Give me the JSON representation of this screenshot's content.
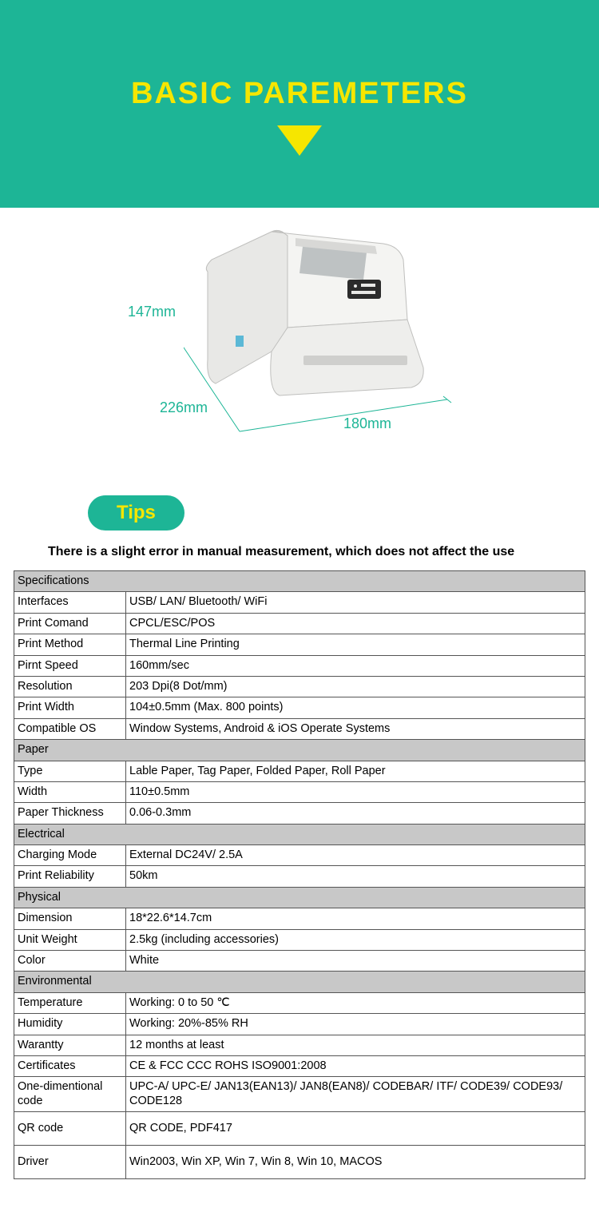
{
  "header": {
    "title": "BASIC PAREMETERS",
    "bg_color": "#1db596",
    "title_color": "#f6e600",
    "triangle_color": "#f6e600"
  },
  "diagram": {
    "dim_height": "147mm",
    "dim_depth": "226mm",
    "dim_width": "180mm",
    "line_color": "#1db596",
    "label_color": "#1db596"
  },
  "tips": {
    "label": "Tips",
    "bg_color": "#1db596",
    "text_color": "#f6e600"
  },
  "note": "There is a slight error in manual measurement, which does not affect the use",
  "spec_sections": [
    {
      "header": "Specifications",
      "rows": [
        [
          "Interfaces",
          "USB/ LAN/ Bluetooth/ WiFi"
        ],
        [
          "Print Comand",
          "CPCL/ESC/POS"
        ],
        [
          "Print Method",
          "Thermal Line Printing"
        ],
        [
          "Pirnt Speed",
          "160mm/sec"
        ],
        [
          "Resolution",
          "203 Dpi(8 Dot/mm)"
        ],
        [
          "Print Width",
          "104±0.5mm (Max. 800 points)"
        ],
        [
          "Compatible OS",
          "Window Systems, Android & iOS Operate Systems"
        ]
      ]
    },
    {
      "header": "Paper",
      "rows": [
        [
          "Type",
          "Lable Paper, Tag Paper,   Folded Paper, Roll Paper"
        ],
        [
          "Width",
          "110±0.5mm"
        ],
        [
          "Paper Thickness",
          "0.06-0.3mm"
        ]
      ]
    },
    {
      "header": "Electrical",
      "rows": [
        [
          "Charging Mode",
          "External DC24V/ 2.5A"
        ],
        [
          "Print Reliability",
          "50km"
        ]
      ]
    },
    {
      "header": "Physical",
      "rows": [
        [
          "Dimension",
          "18*22.6*14.7cm"
        ],
        [
          "Unit Weight",
          "2.5kg (including accessories)"
        ],
        [
          "Color",
          "White"
        ]
      ]
    },
    {
      "header": "Environmental",
      "rows": [
        [
          "Temperature",
          "Working: 0 to 50 ℃"
        ],
        [
          "Humidity",
          "Working: 20%-85% RH"
        ],
        [
          "Warantty",
          "12 months at least"
        ],
        [
          "Certificates",
          "CE & FCC CCC ROHS ISO9001:2008"
        ],
        [
          "One-dimentional code",
          "UPC-A/ UPC-E/ JAN13(EAN13)/ JAN8(EAN8)/ CODEBAR/ ITF/ CODE39/ CODE93/ CODE128"
        ],
        [
          "QR code",
          "QR CODE, PDF417"
        ],
        [
          "Driver",
          "Win2003, Win XP, Win 7, Win 8, Win 10, MACOS"
        ]
      ]
    }
  ],
  "table_style": {
    "border_color": "#555555",
    "section_bg": "#c8c8c8",
    "font_size": 14.5,
    "col_label_width": 140
  }
}
